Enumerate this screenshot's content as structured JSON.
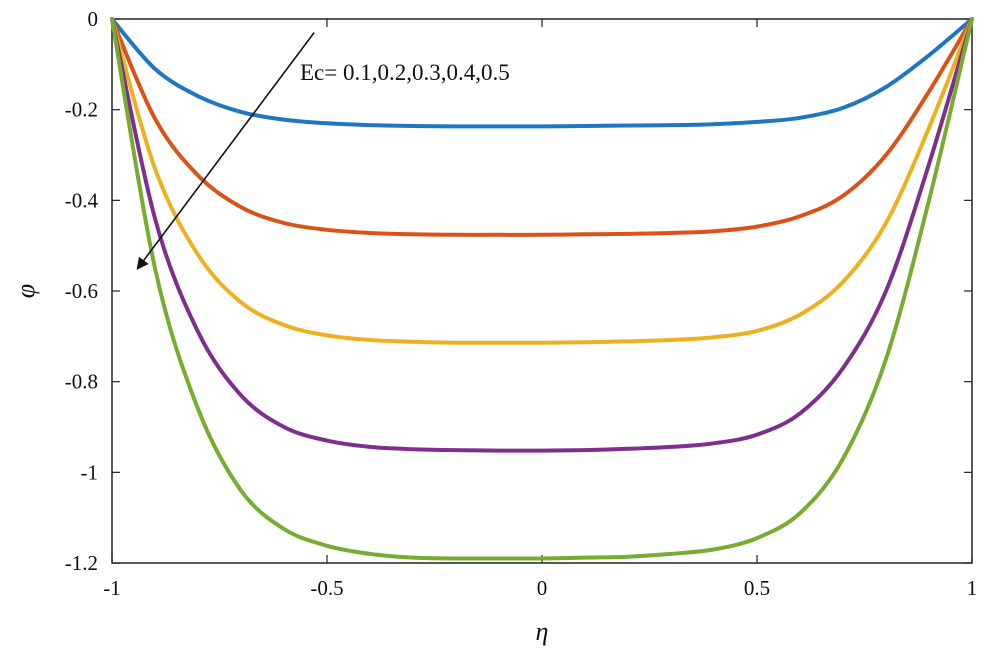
{
  "chart_data": {
    "type": "line",
    "title": "",
    "xlabel": "η",
    "ylabel": "φ",
    "xlim": [
      -1,
      1
    ],
    "ylim": [
      -1.2,
      0
    ],
    "xticks": [
      -1,
      -0.5,
      0,
      0.5,
      1
    ],
    "xtick_labels": [
      "-1",
      "-0.5",
      "0",
      "0.5",
      "1"
    ],
    "yticks": [
      0,
      -0.2,
      -0.4,
      -0.6,
      -0.8,
      -1,
      -1.2
    ],
    "ytick_labels": [
      "0",
      "-0.2",
      "-0.4",
      "-0.6",
      "-0.8",
      "-1",
      "-1.2"
    ],
    "grid": false,
    "x": [
      -1,
      -0.9,
      -0.8,
      -0.7,
      -0.6,
      -0.5,
      -0.4,
      -0.3,
      -0.2,
      -0.1,
      0,
      0.1,
      0.2,
      0.3,
      0.4,
      0.5,
      0.6,
      0.7,
      0.8,
      0.9,
      1
    ],
    "series": [
      {
        "color": "#1f77c4",
        "values": [
          0,
          -0.11,
          -0.17,
          -0.205,
          -0.222,
          -0.23,
          -0.234,
          -0.236,
          -0.237,
          -0.237,
          -0.237,
          -0.236,
          -0.235,
          -0.234,
          -0.232,
          -0.227,
          -0.218,
          -0.196,
          -0.15,
          -0.08,
          0
        ]
      },
      {
        "color": "#d95319",
        "values": [
          0,
          -0.22,
          -0.345,
          -0.415,
          -0.45,
          -0.465,
          -0.472,
          -0.475,
          -0.476,
          -0.476,
          -0.476,
          -0.475,
          -0.474,
          -0.472,
          -0.468,
          -0.458,
          -0.435,
          -0.39,
          -0.3,
          -0.16,
          0
        ]
      },
      {
        "color": "#edb120",
        "values": [
          0,
          -0.33,
          -0.52,
          -0.625,
          -0.675,
          -0.698,
          -0.708,
          -0.712,
          -0.714,
          -0.714,
          -0.714,
          -0.713,
          -0.711,
          -0.708,
          -0.702,
          -0.688,
          -0.652,
          -0.58,
          -0.45,
          -0.24,
          0
        ]
      },
      {
        "color": "#7e2f8e",
        "values": [
          0,
          -0.44,
          -0.69,
          -0.83,
          -0.9,
          -0.93,
          -0.944,
          -0.949,
          -0.951,
          -0.952,
          -0.952,
          -0.951,
          -0.948,
          -0.944,
          -0.936,
          -0.917,
          -0.87,
          -0.77,
          -0.6,
          -0.32,
          0
        ]
      },
      {
        "color": "#77ac30",
        "values": [
          0,
          -0.55,
          -0.86,
          -1.04,
          -1.125,
          -1.162,
          -1.18,
          -1.188,
          -1.19,
          -1.19,
          -1.19,
          -1.188,
          -1.186,
          -1.18,
          -1.17,
          -1.145,
          -1.09,
          -0.97,
          -0.75,
          -0.4,
          0
        ]
      }
    ],
    "annotation": {
      "text": "Ec= 0.1,0.2,0.3,0.4,0.5",
      "arrow_from": [
        -0.53,
        -0.03
      ],
      "arrow_to": [
        -0.94,
        -0.55
      ]
    }
  }
}
